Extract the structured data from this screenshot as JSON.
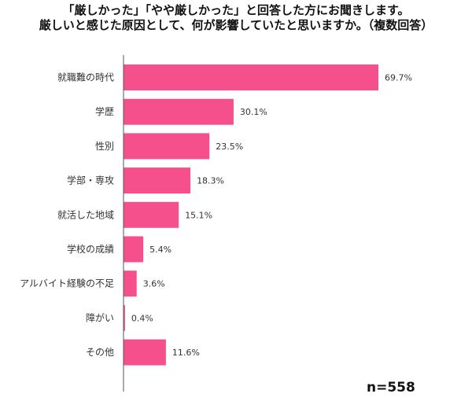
{
  "chart_data": {
    "type": "bar",
    "orientation": "horizontal",
    "title_lines": [
      "「厳しかった」「やや厳しかった」と回答した方にお聞きします。",
      "厳しいと感じた原因として、何が影響していたと思いますか。（複数回答）"
    ],
    "categories": [
      "就職難の時代",
      "学歴",
      "性別",
      "学部・専攻",
      "就活した地域",
      "学校の成績",
      "アルバイト経験の不足",
      "障がい",
      "その他"
    ],
    "values": [
      69.7,
      30.1,
      23.5,
      18.3,
      15.1,
      5.4,
      3.6,
      0.4,
      11.6
    ],
    "value_labels": [
      "69.7%",
      "30.1%",
      "23.5%",
      "18.3%",
      "15.1%",
      "5.4%",
      "3.6%",
      "0.4%",
      "11.6%"
    ],
    "xlim": [
      0,
      100
    ],
    "grid": false,
    "legend": "none",
    "bar_color": "#f5508c",
    "note": "n=558"
  }
}
